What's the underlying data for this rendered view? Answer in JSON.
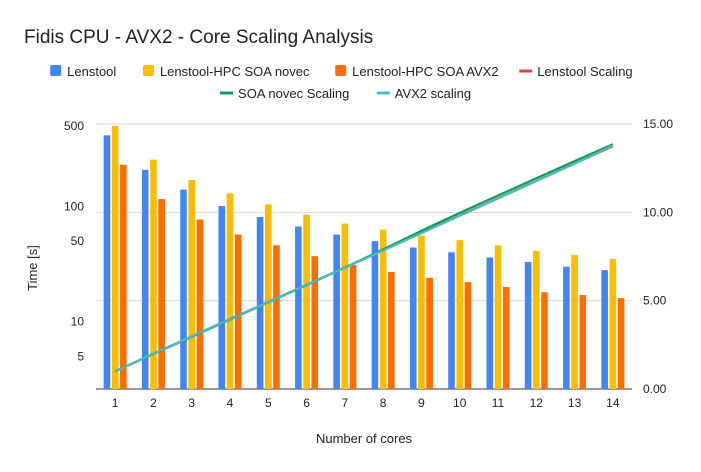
{
  "chart_data": {
    "type": "bar",
    "title": "Fidis CPU - AVX2 - Core Scaling Analysis",
    "xlabel": "Number of cores",
    "ylabel": "Time [s]",
    "y_scale": "log",
    "ylim": [
      2.6,
      520
    ],
    "y_ticks": [
      5,
      10,
      50,
      100,
      500
    ],
    "y_tick_labels": [
      "5",
      "10",
      "50",
      "100",
      "500"
    ],
    "y2lim": [
      0,
      15
    ],
    "y2_ticks": [
      0,
      5,
      10,
      15
    ],
    "y2_tick_labels": [
      "0.00",
      "5.00",
      "10.00",
      "15.00"
    ],
    "categories": [
      "1",
      "2",
      "3",
      "4",
      "5",
      "6",
      "7",
      "8",
      "9",
      "10",
      "11",
      "12",
      "13",
      "14"
    ],
    "legend_position": "top",
    "series": [
      {
        "name": "Lenstool",
        "kind": "bar",
        "axis": "left",
        "color": "#4285f4",
        "values": [
          415,
          208,
          140,
          101,
          81,
          67,
          57,
          50,
          44,
          40,
          36,
          33,
          30,
          28
        ]
      },
      {
        "name": "Lenstool-HPC SOA novec",
        "kind": "bar",
        "axis": "left",
        "color": "#fbbc04",
        "values": [
          500,
          255,
          170,
          130,
          104,
          85,
          71,
          63,
          56,
          51,
          46,
          41,
          38,
          35
        ]
      },
      {
        "name": "Lenstool-HPC SOA AVX2",
        "kind": "bar",
        "axis": "left",
        "color": "#ff6d01",
        "values": [
          230,
          116,
          77,
          57,
          46,
          37,
          31,
          27,
          24,
          22,
          20,
          18,
          17,
          16
        ]
      },
      {
        "name": "Lenstool Scaling",
        "kind": "line",
        "axis": "right",
        "color": "#ea4335",
        "values": [
          1,
          2,
          2.98,
          3.96,
          4.93,
          5.91,
          6.88,
          7.86,
          8.84,
          9.82,
          10.8,
          11.78,
          12.76,
          13.74
        ]
      },
      {
        "name": "SOA novec Scaling",
        "kind": "line",
        "axis": "right",
        "color": "#0f9d58",
        "values": [
          1,
          1.98,
          2.95,
          3.93,
          4.9,
          5.88,
          6.87,
          7.9,
          8.96,
          9.97,
          10.95,
          11.93,
          12.9,
          13.85
        ]
      },
      {
        "name": "AVX2 scaling",
        "kind": "line",
        "axis": "right",
        "color": "#46bdc6",
        "values": [
          1,
          2,
          2.98,
          3.95,
          4.92,
          5.9,
          6.86,
          7.84,
          8.82,
          9.8,
          10.78,
          11.77,
          12.75,
          13.78
        ]
      }
    ]
  }
}
